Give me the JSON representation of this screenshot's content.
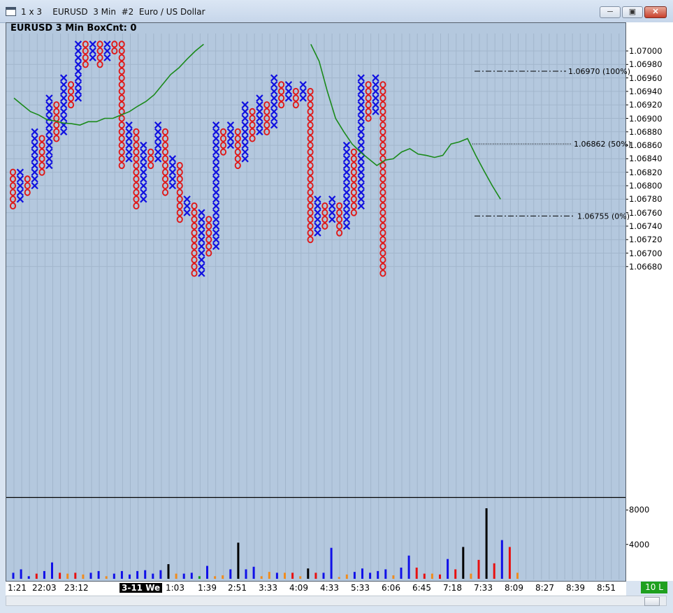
{
  "window": {
    "title": "1 x 3    EURUSD  3 Min  #2  Euro / US Dollar",
    "minimize_icon": "minimize-icon",
    "maximize_icon": "maximize-icon",
    "close_icon": "close-icon"
  },
  "chart_header": {
    "label": "EURUSD 3 Min  BoxCnt: 0"
  },
  "price_axis": {
    "labels": [
      "1.07000",
      "1.06980",
      "1.06960",
      "1.06940",
      "1.06920",
      "1.06900",
      "1.06880",
      "1.06860",
      "1.06840",
      "1.06820",
      "1.06800",
      "1.06780",
      "1.06760",
      "1.06740",
      "1.06720",
      "1.06700",
      "1.06680"
    ]
  },
  "volume_axis": {
    "labels": [
      "8000",
      "4000"
    ]
  },
  "time_axis": {
    "labels": [
      "1:21",
      "22:03",
      "23:12",
      "3-11 We",
      "1:03",
      "1:39",
      "2:51",
      "3:33",
      "4:09",
      "4:33",
      "5:33",
      "6:06",
      "6:45",
      "7:18",
      "7:33",
      "8:09",
      "8:27",
      "8:39",
      "8:51"
    ],
    "highlight": "3-11 We"
  },
  "badge": {
    "label": "10 L"
  },
  "levels": [
    {
      "label": "1.06970  (100%)",
      "price": 1.0697
    },
    {
      "label": "1.06862  (50%)",
      "price": 1.06862
    },
    {
      "label": "1.06755  (0%)",
      "price": 1.06755
    }
  ],
  "colors": {
    "x_color": "#1010e0",
    "o_color": "#e01818",
    "ma_color": "#1a8a1a",
    "bg": "#b4c8de"
  },
  "chart_data": {
    "type": "point_and_figure",
    "box_size": 0.0001,
    "columns": [
      {
        "t": "O",
        "hi": 1.0682,
        "lo": 1.0677
      },
      {
        "t": "X",
        "hi": 1.0682,
        "lo": 1.0678
      },
      {
        "t": "O",
        "hi": 1.0681,
        "lo": 1.0679
      },
      {
        "t": "X",
        "hi": 1.0688,
        "lo": 1.068
      },
      {
        "t": "O",
        "hi": 1.0687,
        "lo": 1.0682
      },
      {
        "t": "X",
        "hi": 1.0693,
        "lo": 1.0683
      },
      {
        "t": "O",
        "hi": 1.0692,
        "lo": 1.0687
      },
      {
        "t": "X",
        "hi": 1.0696,
        "lo": 1.0688
      },
      {
        "t": "O",
        "hi": 1.0695,
        "lo": 1.0692
      },
      {
        "t": "X",
        "hi": 1.0701,
        "lo": 1.0693
      },
      {
        "t": "O",
        "hi": 1.0701,
        "lo": 1.0698
      },
      {
        "t": "X",
        "hi": 1.0701,
        "lo": 1.0699
      },
      {
        "t": "O",
        "hi": 1.0701,
        "lo": 1.0698
      },
      {
        "t": "X",
        "hi": 1.0701,
        "lo": 1.0699
      },
      {
        "t": "O",
        "hi": 1.0701,
        "lo": 1.07
      },
      {
        "t": "O",
        "hi": 1.0701,
        "lo": 1.0683
      },
      {
        "t": "X",
        "hi": 1.0689,
        "lo": 1.0684
      },
      {
        "t": "O",
        "hi": 1.0688,
        "lo": 1.0677
      },
      {
        "t": "X",
        "hi": 1.0686,
        "lo": 1.0678
      },
      {
        "t": "O",
        "hi": 1.0685,
        "lo": 1.0683
      },
      {
        "t": "X",
        "hi": 1.0689,
        "lo": 1.0684
      },
      {
        "t": "O",
        "hi": 1.0688,
        "lo": 1.0679
      },
      {
        "t": "X",
        "hi": 1.0684,
        "lo": 1.068
      },
      {
        "t": "O",
        "hi": 1.0683,
        "lo": 1.0675
      },
      {
        "t": "X",
        "hi": 1.0678,
        "lo": 1.0676
      },
      {
        "t": "O",
        "hi": 1.0677,
        "lo": 1.0667
      },
      {
        "t": "X",
        "hi": 1.0676,
        "lo": 1.0667
      },
      {
        "t": "O",
        "hi": 1.0675,
        "lo": 1.067
      },
      {
        "t": "X",
        "hi": 1.0689,
        "lo": 1.0671
      },
      {
        "t": "O",
        "hi": 1.0688,
        "lo": 1.0685
      },
      {
        "t": "X",
        "hi": 1.0689,
        "lo": 1.0686
      },
      {
        "t": "O",
        "hi": 1.0688,
        "lo": 1.0683
      },
      {
        "t": "X",
        "hi": 1.0692,
        "lo": 1.0684
      },
      {
        "t": "O",
        "hi": 1.0691,
        "lo": 1.0687
      },
      {
        "t": "X",
        "hi": 1.0693,
        "lo": 1.0688
      },
      {
        "t": "O",
        "hi": 1.0692,
        "lo": 1.0688
      },
      {
        "t": "X",
        "hi": 1.0696,
        "lo": 1.0689
      },
      {
        "t": "O",
        "hi": 1.0695,
        "lo": 1.0692
      },
      {
        "t": "X",
        "hi": 1.0695,
        "lo": 1.0693
      },
      {
        "t": "O",
        "hi": 1.0694,
        "lo": 1.0692
      },
      {
        "t": "X",
        "hi": 1.0695,
        "lo": 1.0693
      },
      {
        "t": "O",
        "hi": 1.0694,
        "lo": 1.0672
      },
      {
        "t": "X",
        "hi": 1.0678,
        "lo": 1.0673
      },
      {
        "t": "O",
        "hi": 1.0677,
        "lo": 1.0674
      },
      {
        "t": "X",
        "hi": 1.0678,
        "lo": 1.0675
      },
      {
        "t": "O",
        "hi": 1.0677,
        "lo": 1.0673
      },
      {
        "t": "X",
        "hi": 1.0686,
        "lo": 1.0674
      },
      {
        "t": "O",
        "hi": 1.0685,
        "lo": 1.0676
      },
      {
        "t": "X",
        "hi": 1.0696,
        "lo": 1.0677
      },
      {
        "t": "O",
        "hi": 1.0695,
        "lo": 1.069
      },
      {
        "t": "X",
        "hi": 1.0696,
        "lo": 1.0691
      },
      {
        "t": "O",
        "hi": 1.0695,
        "lo": 1.0667
      }
    ],
    "moving_average": [
      1.0693,
      1.0692,
      1.0691,
      1.06905,
      1.06898,
      1.06896,
      1.06893,
      1.06892,
      1.0689,
      1.06895,
      1.06895,
      1.069,
      1.069,
      1.06905,
      1.0691,
      1.06918,
      1.06925,
      1.06935,
      1.0695,
      1.06965,
      1.06975,
      1.06988,
      1.07,
      1.0701,
      null,
      null,
      null,
      null,
      null,
      null,
      null,
      null,
      null,
      null,
      null,
      null,
      1.0701,
      1.06985,
      1.0694,
      1.069,
      1.0688,
      1.06862,
      1.0685,
      1.0684,
      1.0683,
      1.06838,
      1.0684,
      1.0685,
      1.06855,
      1.06847,
      1.06845,
      1.06842,
      1.06845,
      1.06862,
      1.06865,
      1.0687,
      1.06845,
      1.06822,
      1.068,
      1.0678
    ],
    "volume_ylim": [
      0,
      9500
    ],
    "volume": [
      {
        "v": 700,
        "c": "blue"
      },
      {
        "v": 1100,
        "c": "blue"
      },
      {
        "v": 300,
        "c": "blue"
      },
      {
        "v": 600,
        "c": "red"
      },
      {
        "v": 900,
        "c": "blue"
      },
      {
        "v": 1900,
        "c": "blue"
      },
      {
        "v": 700,
        "c": "red"
      },
      {
        "v": 600,
        "c": "orange"
      },
      {
        "v": 700,
        "c": "red"
      },
      {
        "v": 500,
        "c": "orange"
      },
      {
        "v": 700,
        "c": "blue"
      },
      {
        "v": 900,
        "c": "blue"
      },
      {
        "v": 300,
        "c": "orange"
      },
      {
        "v": 600,
        "c": "blue"
      },
      {
        "v": 900,
        "c": "blue"
      },
      {
        "v": 500,
        "c": "blue"
      },
      {
        "v": 900,
        "c": "blue"
      },
      {
        "v": 1000,
        "c": "blue"
      },
      {
        "v": 600,
        "c": "blue"
      },
      {
        "v": 1000,
        "c": "blue"
      },
      {
        "v": 1700,
        "c": "black"
      },
      {
        "v": 600,
        "c": "orange"
      },
      {
        "v": 600,
        "c": "blue"
      },
      {
        "v": 700,
        "c": "blue"
      },
      {
        "v": 300,
        "c": "green"
      },
      {
        "v": 1500,
        "c": "blue"
      },
      {
        "v": 300,
        "c": "orange"
      },
      {
        "v": 400,
        "c": "orange"
      },
      {
        "v": 1100,
        "c": "blue"
      },
      {
        "v": 4200,
        "c": "black"
      },
      {
        "v": 1100,
        "c": "blue"
      },
      {
        "v": 1400,
        "c": "blue"
      },
      {
        "v": 300,
        "c": "orange"
      },
      {
        "v": 800,
        "c": "orange"
      },
      {
        "v": 700,
        "c": "blue"
      },
      {
        "v": 700,
        "c": "orange"
      },
      {
        "v": 700,
        "c": "red"
      },
      {
        "v": 300,
        "c": "orange"
      },
      {
        "v": 1200,
        "c": "black"
      },
      {
        "v": 700,
        "c": "red"
      },
      {
        "v": 700,
        "c": "blue"
      },
      {
        "v": 3600,
        "c": "blue"
      },
      {
        "v": 200,
        "c": "orange"
      },
      {
        "v": 500,
        "c": "orange"
      },
      {
        "v": 800,
        "c": "blue"
      },
      {
        "v": 1200,
        "c": "blue"
      },
      {
        "v": 700,
        "c": "blue"
      },
      {
        "v": 900,
        "c": "blue"
      },
      {
        "v": 1100,
        "c": "blue"
      },
      {
        "v": 400,
        "c": "orange"
      },
      {
        "v": 1300,
        "c": "blue"
      },
      {
        "v": 2700,
        "c": "blue"
      },
      {
        "v": 1300,
        "c": "red"
      },
      {
        "v": 600,
        "c": "red"
      },
      {
        "v": 600,
        "c": "orange"
      },
      {
        "v": 500,
        "c": "red"
      },
      {
        "v": 2300,
        "c": "blue"
      },
      {
        "v": 1100,
        "c": "red"
      },
      {
        "v": 3700,
        "c": "black"
      },
      {
        "v": 600,
        "c": "orange"
      },
      {
        "v": 2200,
        "c": "red"
      },
      {
        "v": 8200,
        "c": "black"
      },
      {
        "v": 1800,
        "c": "red"
      },
      {
        "v": 4500,
        "c": "blue"
      },
      {
        "v": 3700,
        "c": "red"
      },
      {
        "v": 700,
        "c": "orange"
      }
    ]
  }
}
